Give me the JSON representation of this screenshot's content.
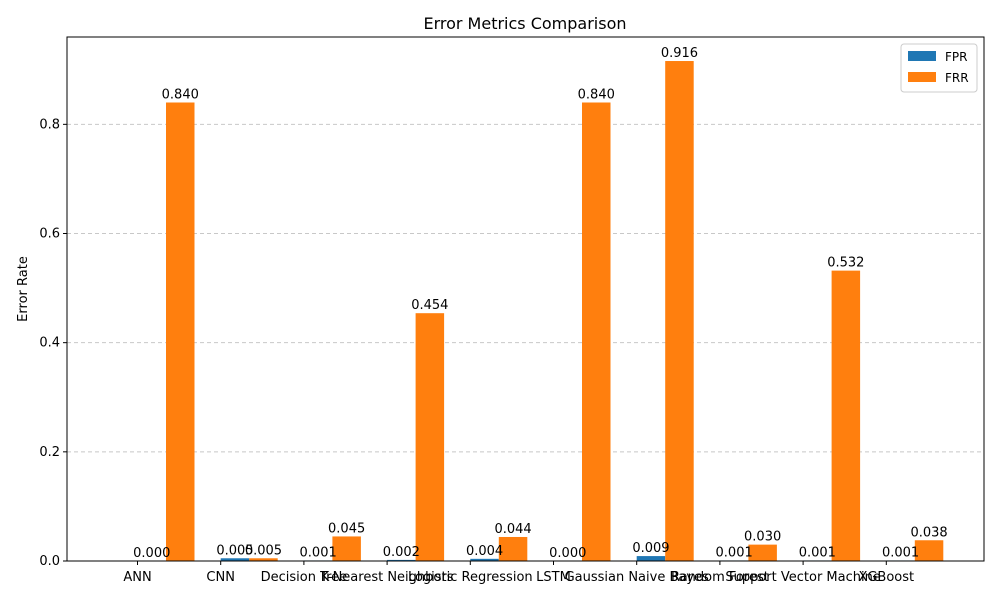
{
  "chart_data": {
    "type": "bar",
    "title": "Error Metrics Comparison",
    "xlabel": "",
    "ylabel": "Error Rate",
    "ylim": [
      0,
      0.96
    ],
    "yticks": [
      "0.0",
      "0.2",
      "0.4",
      "0.6",
      "0.8"
    ],
    "ytick_values": [
      0,
      0.2,
      0.4,
      0.6,
      0.8
    ],
    "grid": "y-dashed",
    "legend_position": "top-right",
    "categories": [
      "ANN",
      "CNN",
      "Decision Tree",
      "K-Nearest Neighbors",
      "Logistic Regression",
      "LSTM",
      "Gaussian Naive Bayes",
      "Random Forest",
      "Support Vector Machine",
      "XGBoost"
    ],
    "series": [
      {
        "name": "FPR",
        "color": "#1f77b4",
        "values": [
          0.0,
          0.005,
          0.001,
          0.002,
          0.004,
          0.0,
          0.009,
          0.001,
          0.001,
          0.001
        ],
        "labels": [
          "0.000",
          "0.005",
          "0.001",
          "0.002",
          "0.004",
          "0.000",
          "0.009",
          "0.001",
          "0.001",
          "0.001"
        ]
      },
      {
        "name": "FRR",
        "color": "#ff7f0e",
        "values": [
          0.84,
          0.005,
          0.045,
          0.454,
          0.044,
          0.84,
          0.916,
          0.03,
          0.532,
          0.038
        ],
        "labels": [
          "0.840",
          "0.005",
          "0.045",
          "0.454",
          "0.044",
          "0.840",
          "0.916",
          "0.030",
          "0.532",
          "0.038"
        ]
      }
    ]
  }
}
